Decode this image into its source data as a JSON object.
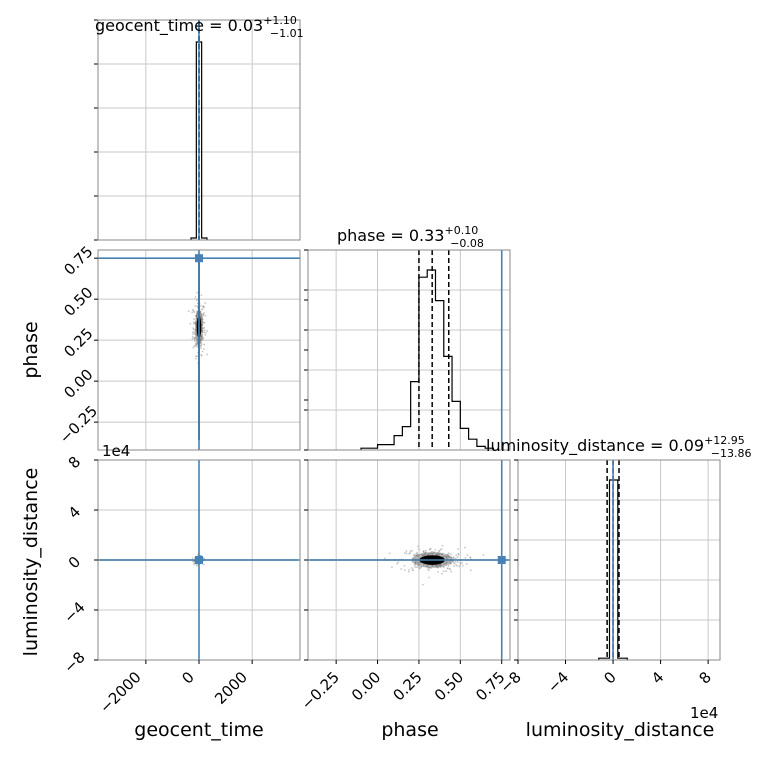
{
  "chart_data": {
    "type": "corner",
    "parameters": [
      "geocent_time",
      "phase",
      "luminosity_distance"
    ],
    "truths": {
      "geocent_time": 0,
      "phase": 0.75,
      "luminosity_distance": 0
    },
    "truth_color": "#4682b4",
    "grid": true,
    "panels": [
      {
        "id": "geocent_time-hist",
        "type": "histogram",
        "param": "geocent_time",
        "title": {
          "main": "geocent_time = 0.03",
          "plus": "+1.10",
          "minus": "−1.01"
        },
        "xlim": [
          -3800,
          3800
        ],
        "x_gridlines": [
          -2000,
          0,
          2000
        ],
        "quantile_lines": [
          -1.01,
          0.03,
          1.1
        ],
        "bins": [
          {
            "x0": -300,
            "x1": -100,
            "count": 0.01
          },
          {
            "x0": -100,
            "x1": 100,
            "count": 1.0
          },
          {
            "x0": 100,
            "x1": 300,
            "count": 0.01
          }
        ]
      },
      {
        "id": "phase-hist",
        "type": "histogram",
        "param": "phase",
        "title": {
          "main": "phase = 0.33",
          "plus": "+0.10",
          "minus": "−0.08"
        },
        "xlim": [
          -0.42,
          0.8
        ],
        "x_gridlines": [
          -0.25,
          0,
          0.25,
          0.5,
          0.75
        ],
        "quantile_lines": [
          0.25,
          0.33,
          0.43
        ],
        "bins": [
          {
            "x0": -0.1,
            "x1": 0.0,
            "count": 0.01
          },
          {
            "x0": 0.0,
            "x1": 0.1,
            "count": 0.03
          },
          {
            "x0": 0.1,
            "x1": 0.15,
            "count": 0.08
          },
          {
            "x0": 0.15,
            "x1": 0.2,
            "count": 0.13
          },
          {
            "x0": 0.2,
            "x1": 0.25,
            "count": 0.38
          },
          {
            "x0": 0.25,
            "x1": 0.3,
            "count": 0.96
          },
          {
            "x0": 0.3,
            "x1": 0.35,
            "count": 1.0
          },
          {
            "x0": 0.35,
            "x1": 0.4,
            "count": 0.83
          },
          {
            "x0": 0.4,
            "x1": 0.45,
            "count": 0.52
          },
          {
            "x0": 0.45,
            "x1": 0.5,
            "count": 0.27
          },
          {
            "x0": 0.5,
            "x1": 0.55,
            "count": 0.12
          },
          {
            "x0": 0.55,
            "x1": 0.6,
            "count": 0.06
          },
          {
            "x0": 0.6,
            "x1": 0.65,
            "count": 0.02
          },
          {
            "x0": 0.65,
            "x1": 0.7,
            "count": 0.01
          }
        ]
      },
      {
        "id": "luminosity_distance-hist",
        "type": "histogram",
        "param": "luminosity_distance",
        "title": {
          "main": "luminosity_distance = 0.09",
          "plus": "+12.95",
          "minus": "−13.86"
        },
        "xlim": [
          -8,
          9
        ],
        "x_gridlines": [
          -8,
          -4,
          0,
          4,
          8
        ],
        "quantile_lines": [
          -0.5,
          0.0,
          0.5
        ],
        "bins": [
          {
            "x0": -1.2,
            "x1": -0.3,
            "count": 0.01
          },
          {
            "x0": -0.3,
            "x1": 0.4,
            "count": 1.0
          },
          {
            "x0": 0.4,
            "x1": 1.2,
            "count": 0.01
          }
        ]
      },
      {
        "id": "phase-vs-geocent_time",
        "type": "scatter-density",
        "x_param": "geocent_time",
        "y_param": "phase",
        "xlim": [
          -3800,
          3800
        ],
        "ylim": [
          -0.42,
          0.8
        ],
        "x_gridlines": [
          -2000,
          0,
          2000
        ],
        "y_gridlines": [
          -0.25,
          0,
          0.25,
          0.5,
          0.75
        ],
        "center": [
          0,
          0.33
        ],
        "spread": [
          80,
          0.06
        ]
      },
      {
        "id": "luminosity_distance-vs-geocent_time",
        "type": "scatter-density",
        "x_param": "geocent_time",
        "y_param": "luminosity_distance",
        "xlim": [
          -3800,
          3800
        ],
        "ylim": [
          -8,
          8
        ],
        "x_gridlines": [
          -2000,
          0,
          2000
        ],
        "y_gridlines": [
          -8,
          -4,
          0,
          4,
          8
        ],
        "center": [
          0,
          0
        ],
        "spread": [
          60,
          0.1
        ]
      },
      {
        "id": "luminosity_distance-vs-phase",
        "type": "scatter-density",
        "x_param": "phase",
        "y_param": "luminosity_distance",
        "xlim": [
          -0.42,
          0.8
        ],
        "ylim": [
          -8,
          8
        ],
        "x_gridlines": [
          -0.25,
          0,
          0.25,
          0.5,
          0.75
        ],
        "y_gridlines": [
          -8,
          -4,
          0,
          4,
          8
        ],
        "center": [
          0.33,
          0
        ],
        "spread": [
          0.07,
          0.35
        ]
      }
    ],
    "tick_labels": {
      "geocent_time_x": [
        "−2000",
        "0",
        "2000"
      ],
      "phase_x": [
        "−0.25",
        "0.00",
        "0.25",
        "0.50",
        "0.75"
      ],
      "phase_y": [
        "0.75",
        "0.50",
        "0.25",
        "0.00",
        "−0.25"
      ],
      "luminosity_distance_x": [
        "−8",
        "−4",
        "0",
        "4",
        "8"
      ],
      "luminosity_distance_y": [
        "8",
        "4",
        "0",
        "−4",
        "−8"
      ]
    },
    "axis_labels": {
      "geocent_time": "geocent_time",
      "phase": "phase",
      "luminosity_distance": "luminosity_distance"
    },
    "offset_texts": {
      "luminosity_distance_y": "1e4",
      "luminosity_distance_x": "1e4"
    }
  }
}
